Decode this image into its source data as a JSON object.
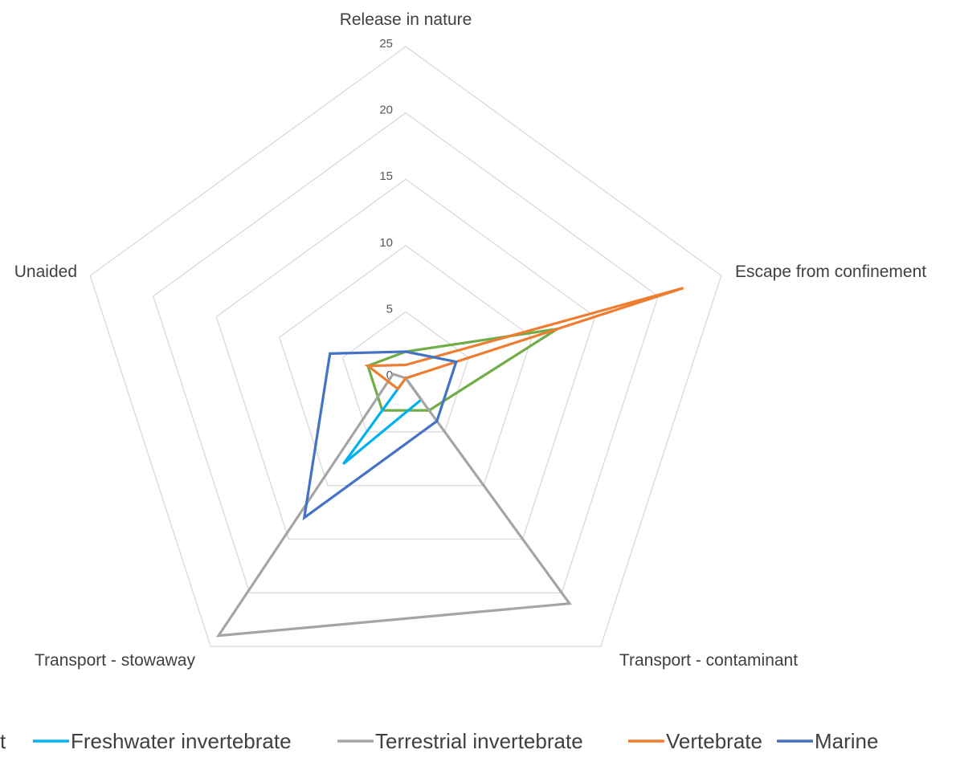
{
  "chart_data": {
    "type": "radar",
    "axes": [
      "Release in nature",
      "Escape from confinement",
      "Transport - contaminant",
      "Transport - stowaway",
      "Unaided"
    ],
    "rlim": [
      0,
      25
    ],
    "ticks": [
      "0",
      "5",
      "10",
      "15",
      "20",
      "25"
    ],
    "grid": true,
    "legend_position": "bottom",
    "series": [
      {
        "name": "",
        "color": "#70ad47",
        "values": [
          2,
          12,
          3,
          3,
          3
        ]
      },
      {
        "name": "Freshwater invertebrate",
        "color": "#00b0f0",
        "values": [
          0,
          0,
          2,
          8,
          0
        ]
      },
      {
        "name": "Terrestrial invertebrate",
        "color": "#a5a5a5",
        "values": [
          0,
          0,
          21,
          24,
          1
        ]
      },
      {
        "name": "Vertebrate",
        "color": "#ed7d31",
        "values": [
          1,
          22,
          0,
          1,
          3
        ]
      },
      {
        "name": "Marine",
        "color": "#4472c4",
        "values": [
          2,
          4,
          4,
          13,
          6
        ]
      }
    ],
    "legend": [
      {
        "label": "t",
        "color": "#70ad47",
        "line": false
      },
      {
        "label": "Freshwater invertebrate",
        "color": "#00b0f0",
        "line": true
      },
      {
        "label": "Terrestrial invertebrate",
        "color": "#a5a5a5",
        "line": true
      },
      {
        "label": "Vertebrate",
        "color": "#ed7d31",
        "line": true
      },
      {
        "label": "Marine",
        "color": "#4472c4",
        "line": true
      }
    ]
  }
}
